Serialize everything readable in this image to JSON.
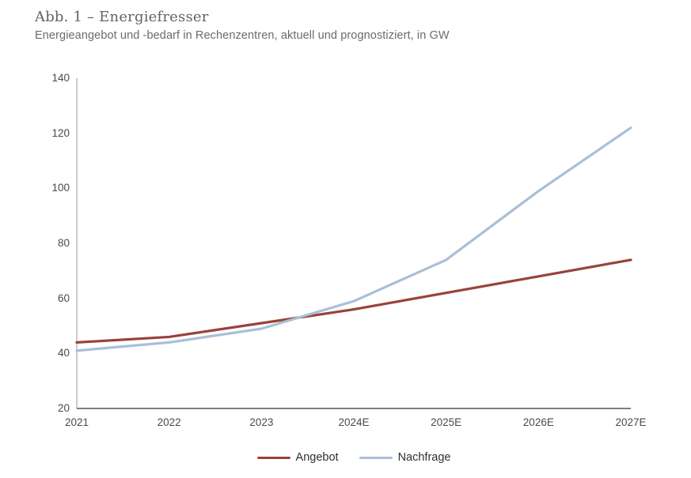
{
  "chart_data": {
    "type": "line",
    "title": "Abb. 1 – Energiefresser",
    "subtitle": "Energieangebot und -bedarf in Rechenzentren, aktuell und prognostiziert, in GW",
    "unit": "GW",
    "categories": [
      "2021",
      "2022",
      "2023",
      "2024E",
      "2025E",
      "2026E",
      "2027E"
    ],
    "series": [
      {
        "name": "Angebot",
        "color": "#99423b",
        "values": [
          44,
          46,
          51,
          56,
          62,
          68,
          74
        ]
      },
      {
        "name": "Nachfrage",
        "color": "#aabfd6",
        "values": [
          41,
          44,
          49,
          59,
          74,
          99,
          122
        ]
      }
    ],
    "ylim": [
      20,
      140
    ],
    "yticks": [
      20,
      40,
      60,
      80,
      100,
      120,
      140
    ],
    "xlabel": "",
    "ylabel": "",
    "grid": false,
    "legend_position": "bottom"
  }
}
